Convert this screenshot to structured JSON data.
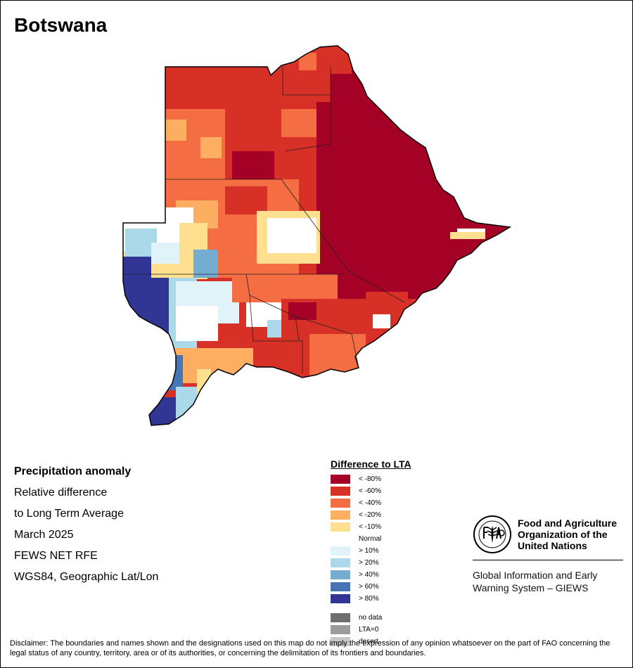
{
  "title": "Botswana",
  "info": {
    "heading": "Precipitation anomaly",
    "line1": "Relative difference",
    "line2": "to Long Term Average",
    "period": "March 2025",
    "source": "FEWS NET RFE",
    "projection": "WGS84, Geographic Lat/Lon"
  },
  "legend": {
    "title": "Difference to LTA",
    "classes": [
      {
        "label": "< -80%",
        "color": "#a50026"
      },
      {
        "label": "< -60%",
        "color": "#d73027"
      },
      {
        "label": "< -40%",
        "color": "#f46d43"
      },
      {
        "label": "< -20%",
        "color": "#fdae61"
      },
      {
        "label": "< -10%",
        "color": "#fee090"
      },
      {
        "label": "Normal",
        "color": "#ffffff"
      },
      {
        "label": "> 10%",
        "color": "#e0f3f8"
      },
      {
        "label": "> 20%",
        "color": "#abd9e9"
      },
      {
        "label": "> 40%",
        "color": "#74add1"
      },
      {
        "label": "> 60%",
        "color": "#4575b4"
      },
      {
        "label": "> 80%",
        "color": "#313695"
      }
    ],
    "extra": [
      {
        "label": "no data",
        "color": "#6e6e6e"
      },
      {
        "label": "LTA=0",
        "color": "#9c9c9c"
      },
      {
        "label": "desert",
        "color": "#c8c8c8"
      }
    ]
  },
  "fao": {
    "name_line1": "Food and Agriculture",
    "name_line2": "Organization of the",
    "name_line3": "United Nations",
    "giews_line1": "Global Information and Early",
    "giews_line2": "Warning System – GIEWS"
  },
  "disclaimer": "Disclaimer: The boundaries and names shown and the designations used on this map do not imply the expression of any opinion whatsoever on the part of FAO concerning the legal status of any country, territory, area or of its authorities, or concerning the delimitation of its frontiers and boundaries."
}
